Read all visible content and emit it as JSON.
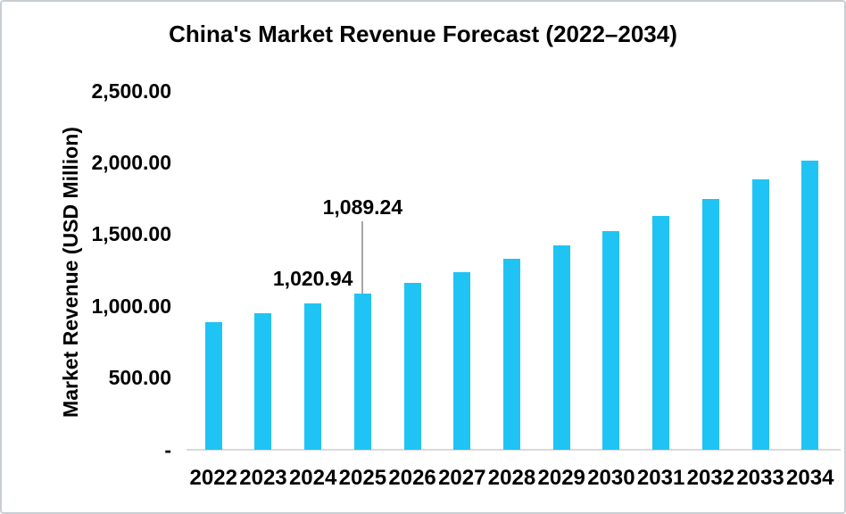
{
  "chart_data": {
    "type": "bar",
    "title": "China's Market Revenue Forecast (2022–2034)",
    "xlabel": "",
    "ylabel": "Market Revenue (USD Million)",
    "categories": [
      "2022",
      "2023",
      "2024",
      "2025",
      "2026",
      "2027",
      "2028",
      "2029",
      "2030",
      "2031",
      "2032",
      "2033",
      "2034"
    ],
    "values": [
      888,
      950,
      1020.94,
      1089.24,
      1162,
      1239,
      1332,
      1425,
      1525,
      1629,
      1748,
      1882,
      2016
    ],
    "ylim": [
      0,
      2500
    ],
    "y_ticks": [
      {
        "label": "2,500.00",
        "value": 2500
      },
      {
        "label": "2,000.00",
        "value": 2000
      },
      {
        "label": "1,500.00",
        "value": 1500
      },
      {
        "label": "1,000.00",
        "value": 1000
      },
      {
        "label": "500.00",
        "value": 500
      },
      {
        "label": "-",
        "value": 0
      }
    ],
    "annotations": [
      {
        "category": "2024",
        "text": "1,020.94",
        "leader": false
      },
      {
        "category": "2025",
        "text": "1,089.24",
        "leader": true
      }
    ],
    "grid": false,
    "legend": false,
    "colors": {
      "bar": "#1fc4f4",
      "axis_line": "#d9d9d9",
      "leader_line": "#a6a6a6",
      "text": "#000000",
      "frame_border": "#c9ced3",
      "background": "#ffffff"
    }
  }
}
